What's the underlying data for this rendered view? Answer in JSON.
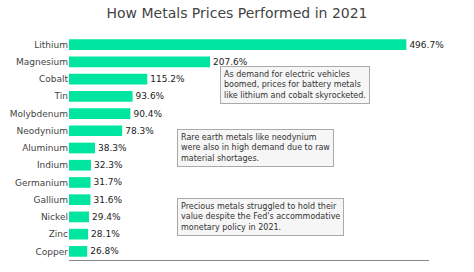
{
  "chart_data": {
    "type": "bar",
    "orientation": "horizontal",
    "title": "How Metals Prices Performed in 2021",
    "categories": [
      "Lithium",
      "Magnesium",
      "Cobalt",
      "Tin",
      "Molybdenum",
      "Neodynium",
      "Aluminum",
      "Indium",
      "Germanium",
      "Gallium",
      "Nickel",
      "Zinc",
      "Copper"
    ],
    "values": [
      496.7,
      207.6,
      115.2,
      93.6,
      90.4,
      78.3,
      38.3,
      32.3,
      31.7,
      31.6,
      29.4,
      28.1,
      26.8
    ],
    "value_labels": [
      "496.7%",
      "207.6%",
      "115.2%",
      "93.6%",
      "90.4%",
      "78.3%",
      "38.3%",
      "32.3%",
      "31.7%",
      "31.6%",
      "29.4%",
      "28.1%",
      "26.8%"
    ],
    "data_labels": true,
    "color": "#00e5a0",
    "xlim": [
      0,
      530
    ],
    "tick_labels": "y",
    "grid": false,
    "annotations": [
      "As demand for electric vehicles\nboomed, prices for battery metals\nlike lithium and cobalt skyrocketed.",
      "Rare earth metals like neodynium\nwere also in high demand due to raw\nmaterial shortages.",
      "Precious metals struggled to hold their\nvalue despite the Fed's accommodative\nmonetary policy in 2021."
    ]
  }
}
